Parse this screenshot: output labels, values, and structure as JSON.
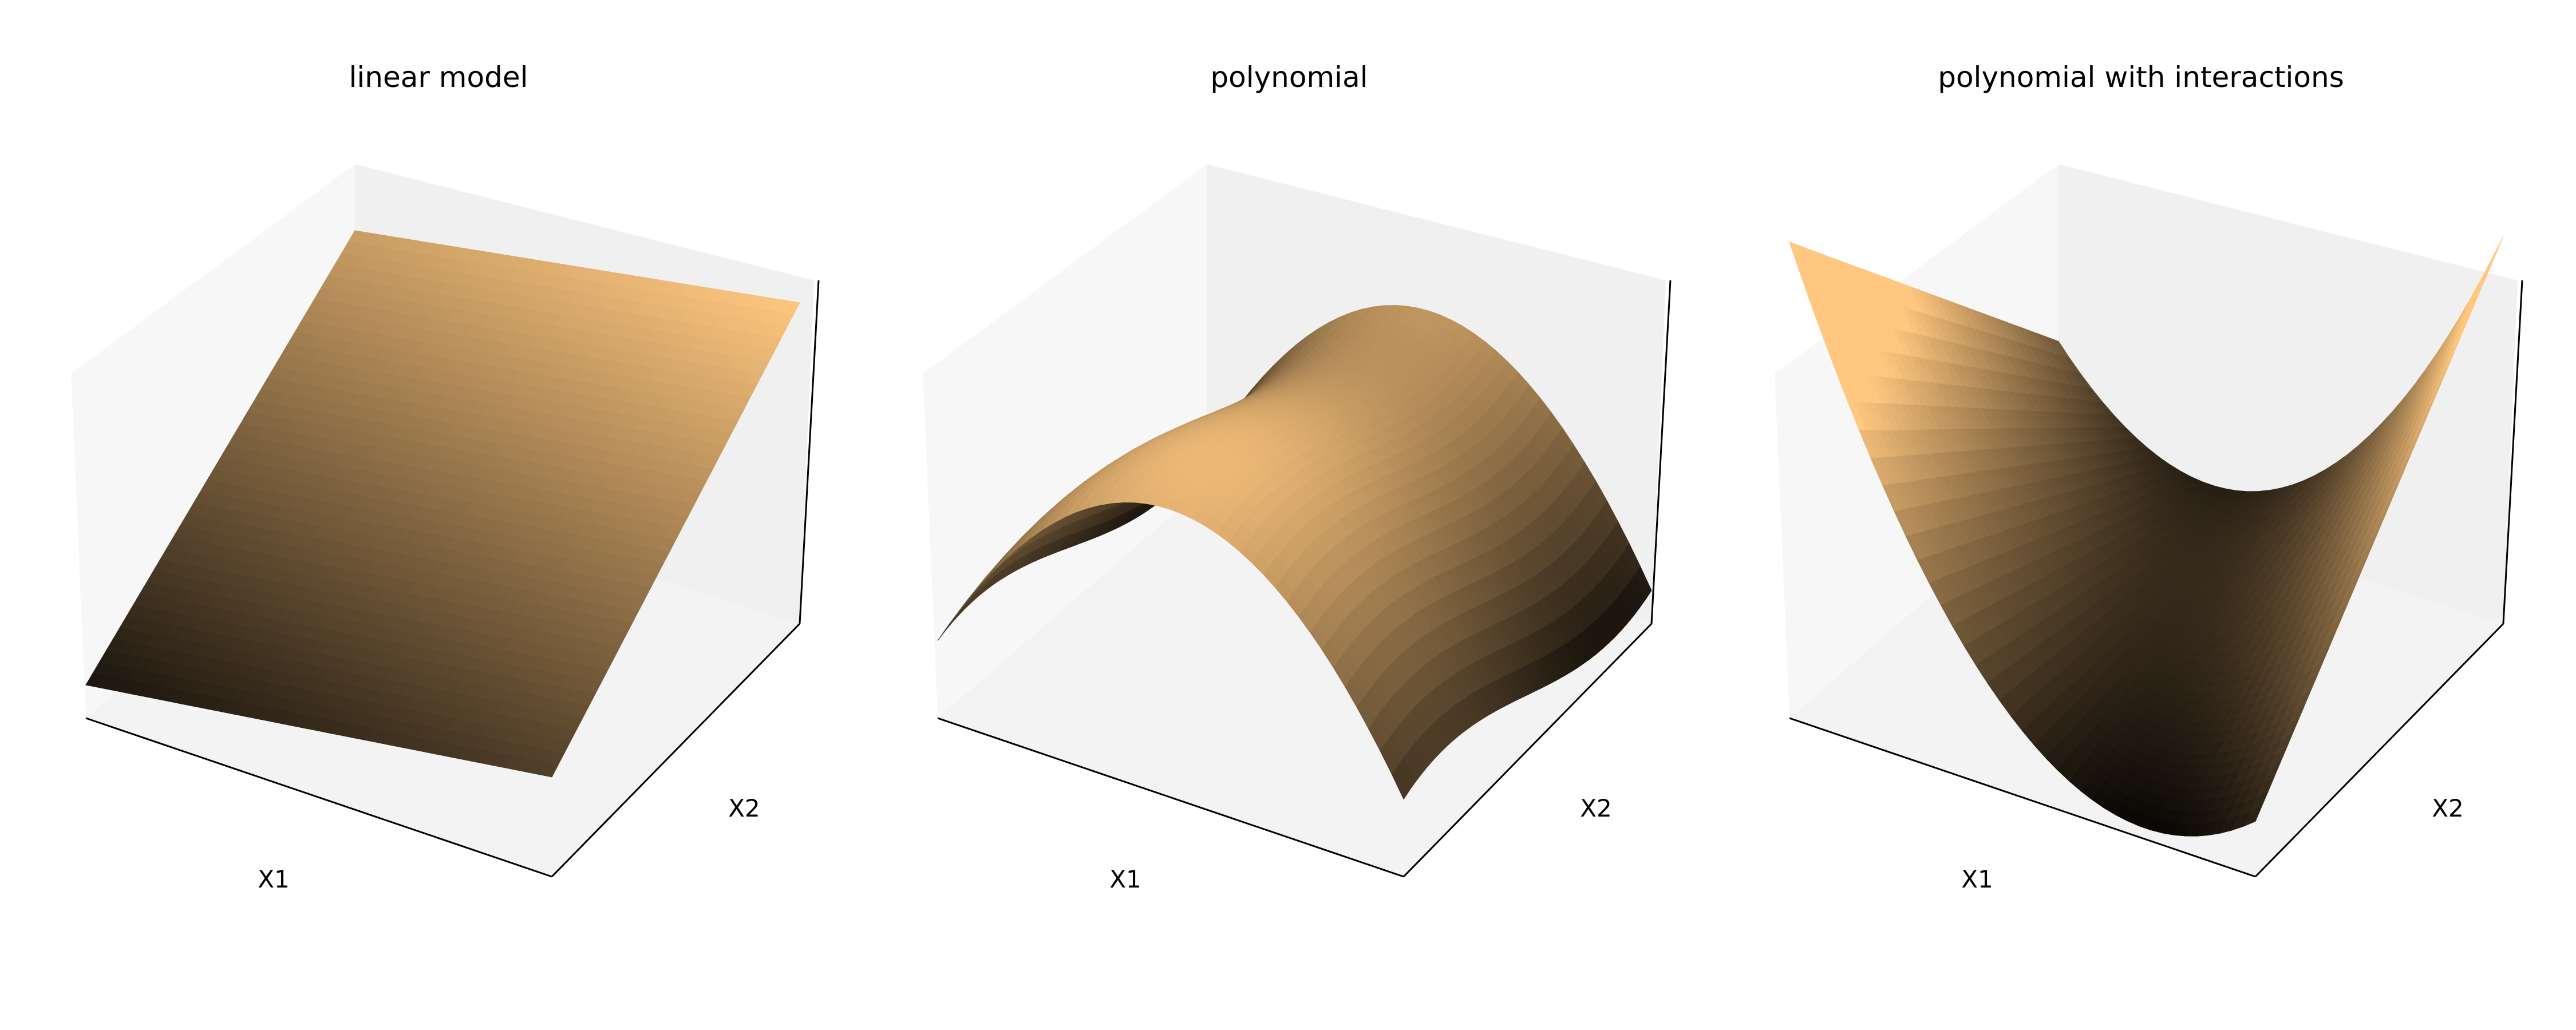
{
  "chart_data": [
    {
      "type": "surface3d",
      "title": "linear model",
      "xlabel": "X1",
      "ylabel": "X2",
      "zlabel": "",
      "x_range": [
        -1,
        1
      ],
      "y_range": [
        -1,
        1
      ],
      "model": "linear",
      "grid": false,
      "ticks": false
    },
    {
      "type": "surface3d",
      "title": "polynomial",
      "xlabel": "X1",
      "ylabel": "X2",
      "zlabel": "",
      "x_range": [
        -1,
        1
      ],
      "y_range": [
        -1,
        1
      ],
      "model": "polynomial",
      "grid": false,
      "ticks": false
    },
    {
      "type": "surface3d",
      "title": "polynomial with interactions",
      "xlabel": "X1",
      "ylabel": "X2",
      "zlabel": "",
      "x_range": [
        -1,
        1
      ],
      "y_range": [
        -1,
        1
      ],
      "model": "polynomial with interactions",
      "grid": false,
      "ticks": false
    }
  ],
  "colors": {
    "colormap": "copper",
    "low": "#000000",
    "high": "#ffc77f",
    "pane_left": "#f7f7f7",
    "pane_back": "#f0f0f0",
    "pane_floor": "#f3f3f3",
    "axis_line": "#000000"
  }
}
